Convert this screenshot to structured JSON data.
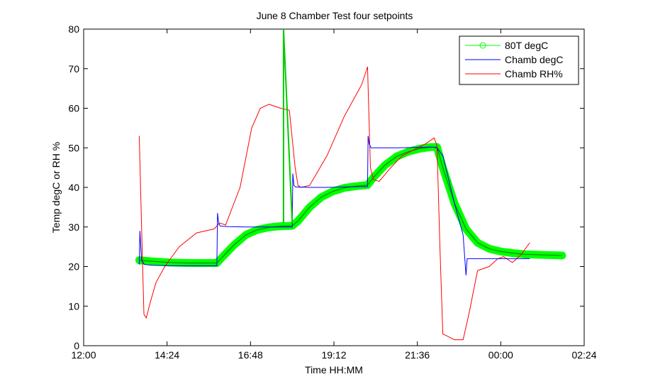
{
  "chart_data": {
    "type": "line",
    "title": "June 8 Chamber Test four setpoints",
    "xlabel": "Time HH:MM",
    "ylabel": "Temp degC or RH %",
    "xlim": [
      "12:00",
      "02:24"
    ],
    "ylim": [
      0,
      80
    ],
    "x_ticks": [
      "12:00",
      "14:24",
      "16:48",
      "19:12",
      "21:36",
      "00:00",
      "02:24"
    ],
    "y_ticks": [
      "0",
      "10",
      "20",
      "30",
      "40",
      "50",
      "60",
      "70",
      "80"
    ],
    "legend_position": "top-right",
    "grid": false,
    "series": [
      {
        "name": "80T degC",
        "color": "#00ff00",
        "marker": "circle",
        "x": [
          "13:36",
          "14:00",
          "14:30",
          "15:00",
          "15:30",
          "15:50",
          "16:00",
          "16:20",
          "16:40",
          "17:00",
          "17:20",
          "17:40",
          "18:00",
          "18:10",
          "18:30",
          "18:50",
          "19:10",
          "19:30",
          "19:50",
          "20:10",
          "20:20",
          "20:40",
          "21:00",
          "21:20",
          "21:40",
          "22:00",
          "22:10",
          "22:20",
          "22:40",
          "23:00",
          "23:20",
          "23:40",
          "00:00",
          "00:20",
          "00:40",
          "01:00",
          "01:20",
          "01:46"
        ],
        "y": [
          21.6,
          21.3,
          21.0,
          20.9,
          20.9,
          20.9,
          22.5,
          25.5,
          28.0,
          29.3,
          29.9,
          30.2,
          30.3,
          31.5,
          35.0,
          37.5,
          39.0,
          39.9,
          40.3,
          40.6,
          42.5,
          45.6,
          47.8,
          49.0,
          49.8,
          50.2,
          50.2,
          45.0,
          36.0,
          29.5,
          26.0,
          24.5,
          23.8,
          23.4,
          23.1,
          23.0,
          22.9,
          22.8
        ]
      },
      {
        "name": "Chamb degC",
        "color": "#0000ff",
        "x": [
          "13:36",
          "13:37",
          "13:40",
          "13:45",
          "14:00",
          "14:30",
          "15:00",
          "15:30",
          "15:50",
          "15:51",
          "15:53",
          "15:56",
          "16:10",
          "16:40",
          "17:10",
          "17:40",
          "18:00",
          "18:01",
          "18:03",
          "18:06",
          "18:30",
          "19:00",
          "19:30",
          "20:00",
          "20:10",
          "20:11",
          "20:13",
          "20:16",
          "20:30",
          "21:00",
          "21:30",
          "22:00",
          "22:10",
          "22:20",
          "22:40",
          "22:55",
          "23:00",
          "23:02",
          "23:30",
          "00:00",
          "00:30",
          "00:50"
        ],
        "y": [
          20.5,
          29.0,
          21.5,
          20.5,
          20.3,
          20.2,
          20.2,
          20.2,
          20.2,
          33.5,
          31.0,
          30.2,
          30.1,
          30.0,
          30.0,
          30.0,
          30.0,
          43.5,
          40.5,
          40.1,
          40.0,
          40.0,
          40.1,
          40.2,
          40.2,
          53.0,
          51.0,
          50.0,
          50.0,
          50.0,
          50.1,
          50.2,
          50.0,
          48.0,
          36.0,
          28.0,
          17.8,
          22.0,
          22.0,
          22.0,
          22.0,
          22.0
        ]
      },
      {
        "name": "Chamb RH%",
        "color": "#ff0000",
        "x": [
          "13:36",
          "13:40",
          "13:44",
          "13:48",
          "13:55",
          "14:05",
          "14:20",
          "14:45",
          "15:15",
          "15:45",
          "15:55",
          "16:05",
          "16:30",
          "16:50",
          "17:05",
          "17:20",
          "17:40",
          "17:55",
          "18:05",
          "18:10",
          "18:15",
          "18:30",
          "19:00",
          "19:30",
          "20:00",
          "20:10",
          "20:15",
          "20:20",
          "20:30",
          "20:50",
          "21:10",
          "21:30",
          "21:50",
          "22:05",
          "22:10",
          "22:15",
          "22:20",
          "22:40",
          "22:55",
          "23:05",
          "23:20",
          "23:40",
          "23:55",
          "00:05",
          "00:20",
          "00:35",
          "00:50"
        ],
        "y": [
          53.0,
          30.0,
          8.0,
          7.0,
          11.0,
          16.0,
          20.0,
          25.0,
          28.5,
          29.5,
          31.0,
          30.5,
          40.0,
          55.0,
          60.0,
          61.0,
          60.0,
          59.5,
          45.0,
          40.5,
          40.0,
          40.5,
          48.0,
          58.0,
          66.0,
          70.5,
          45.0,
          42.0,
          41.5,
          45.0,
          48.0,
          49.5,
          51.0,
          52.5,
          50.5,
          25.0,
          3.0,
          1.5,
          1.5,
          8.0,
          19.0,
          20.0,
          22.0,
          22.5,
          21.0,
          23.0,
          26.0
        ]
      },
      {
        "name": "",
        "color": "#00cc00",
        "x": [
          "17:45",
          "17:45",
          "18:00"
        ],
        "y": [
          31.0,
          80.0,
          31.0
        ]
      }
    ]
  }
}
